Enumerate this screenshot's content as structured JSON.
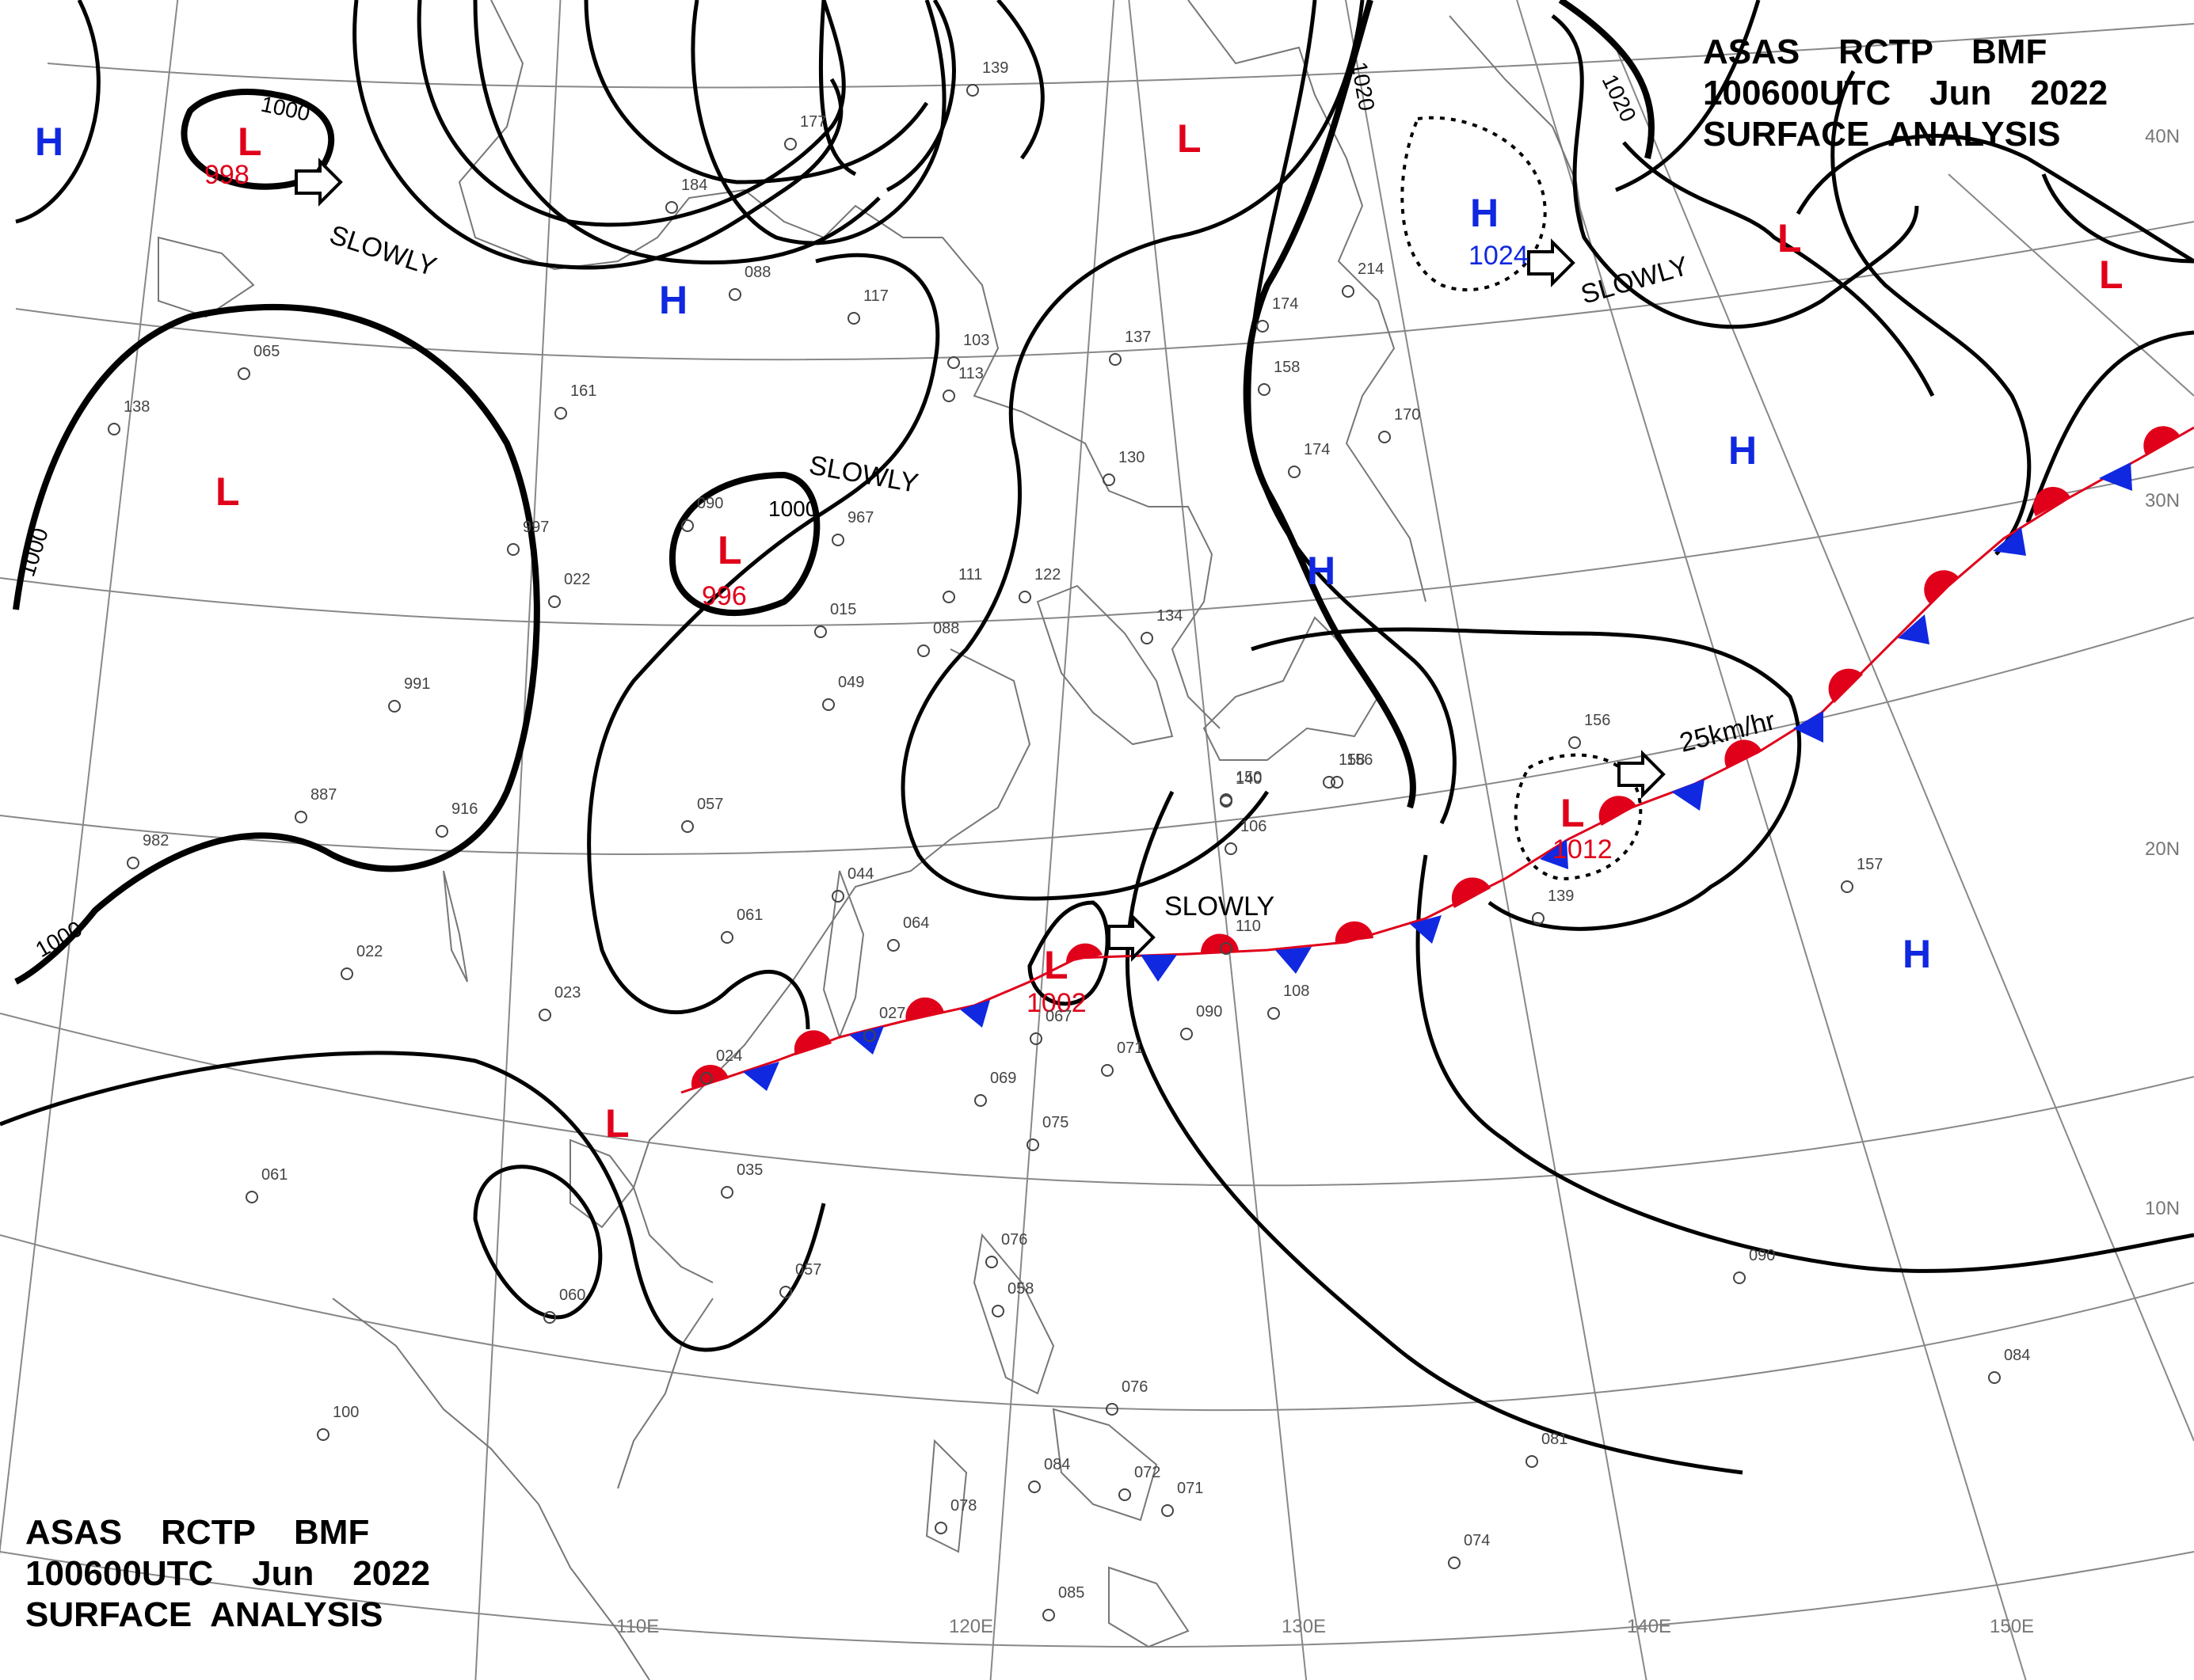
{
  "header": {
    "line1": "ASAS    RCTP    BMF",
    "line2": "100600UTC    Jun    2022",
    "line3": "SURFACE  ANALYSIS"
  },
  "footer": {
    "line1": "ASAS    RCTP    BMF",
    "line2": "100600UTC    Jun    2022",
    "line3": "SURFACE  ANALYSIS"
  },
  "axes": {
    "lon": [
      "110E",
      "120E",
      "130E",
      "140E",
      "150E"
    ],
    "lat": [
      "40N",
      "30N",
      "20N",
      "10N"
    ]
  },
  "isobar_labels": [
    "1000",
    "1000",
    "1000",
    "1000",
    "1020",
    "1020"
  ],
  "pressure_systems": [
    {
      "type": "L",
      "value": "998"
    },
    {
      "type": "L",
      "value": "996"
    },
    {
      "type": "L",
      "value": "1002"
    },
    {
      "type": "L",
      "value": "1012"
    },
    {
      "type": "H",
      "value": "1024"
    },
    {
      "type": "L",
      "value": ""
    },
    {
      "type": "L",
      "value": ""
    },
    {
      "type": "L",
      "value": ""
    },
    {
      "type": "L",
      "value": ""
    },
    {
      "type": "L",
      "value": ""
    },
    {
      "type": "H",
      "value": ""
    },
    {
      "type": "H",
      "value": ""
    },
    {
      "type": "H",
      "value": ""
    },
    {
      "type": "H",
      "value": ""
    },
    {
      "type": "H",
      "value": ""
    }
  ],
  "movements": [
    "SLOWLY",
    "SLOWLY",
    "SLOWLY",
    "SLOWLY",
    "25km/hr"
  ],
  "stations": [
    "139",
    "177",
    "184",
    "088",
    "065",
    "161",
    "138",
    "117",
    "113",
    "103",
    "137",
    "174",
    "158",
    "214",
    "170",
    "174",
    "090",
    "967",
    "997",
    "022",
    "015",
    "111",
    "122",
    "130",
    "088",
    "134",
    "049",
    "991",
    "156",
    "150",
    "887",
    "916",
    "982",
    "057",
    "044",
    "061",
    "064",
    "140",
    "106",
    "156",
    "158",
    "139",
    "157",
    "022",
    "023",
    "027",
    "024",
    "067",
    "069",
    "075",
    "071",
    "090",
    "108",
    "110",
    "035",
    "061",
    "060",
    "057",
    "076",
    "058",
    "100",
    "078",
    "084",
    "072",
    "071",
    "076",
    "085",
    "074",
    "081",
    "090",
    "084"
  ],
  "colors": {
    "warm_front": "#e0001a",
    "cold_front": "#1028e0",
    "low": "#e0001a",
    "high": "#1028e0",
    "isobar": "#000000"
  }
}
